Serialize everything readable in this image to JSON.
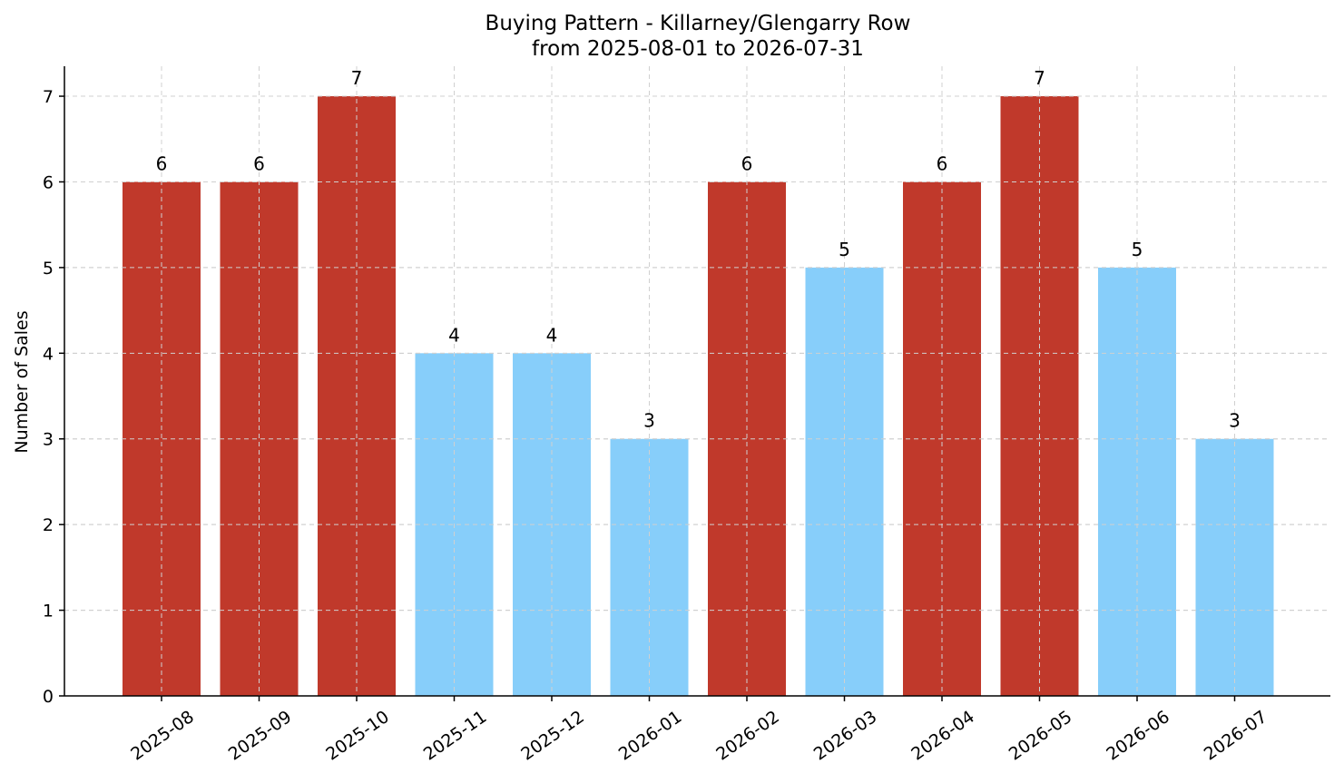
{
  "chart_data": {
    "type": "bar",
    "title": "Buying Pattern - Killarney/Glengarry Row",
    "subtitle": "from 2025-08-01 to 2026-07-31",
    "xlabel": "",
    "ylabel": "Number of Sales",
    "categories": [
      "2025-08",
      "2025-09",
      "2025-10",
      "2025-11",
      "2025-12",
      "2026-01",
      "2026-02",
      "2026-03",
      "2026-04",
      "2026-05",
      "2026-06",
      "2026-07"
    ],
    "values": [
      6,
      6,
      7,
      4,
      4,
      3,
      6,
      5,
      6,
      7,
      5,
      3
    ],
    "bar_colors": [
      "#c0392b",
      "#c0392b",
      "#c0392b",
      "#87cefa",
      "#87cefa",
      "#87cefa",
      "#c0392b",
      "#87cefa",
      "#c0392b",
      "#c0392b",
      "#87cefa",
      "#87cefa"
    ],
    "ylim": [
      0,
      7.35
    ],
    "yticks": [
      0,
      1,
      2,
      3,
      4,
      5,
      6,
      7
    ],
    "grid": true,
    "data_labels": true
  }
}
